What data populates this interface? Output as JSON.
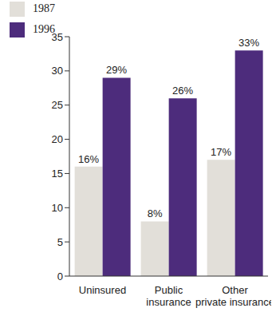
{
  "chart_data": {
    "type": "bar",
    "categories": [
      "Uninsured",
      "Public insurance",
      "Other private insurance"
    ],
    "series": [
      {
        "name": "1987",
        "color": "#e2dfd9",
        "values": [
          16,
          8,
          17
        ],
        "value_labels": [
          "16%",
          "8%",
          "17%"
        ]
      },
      {
        "name": "1996",
        "color": "#4d2c7c",
        "values": [
          29,
          26,
          33
        ],
        "value_labels": [
          "29%",
          "26%",
          "33%"
        ]
      }
    ],
    "ylim": [
      0,
      35
    ],
    "yticks": [
      0,
      5,
      10,
      15,
      20,
      25,
      30,
      35
    ],
    "grid": false,
    "legend": "top-left",
    "data_labels": true
  }
}
